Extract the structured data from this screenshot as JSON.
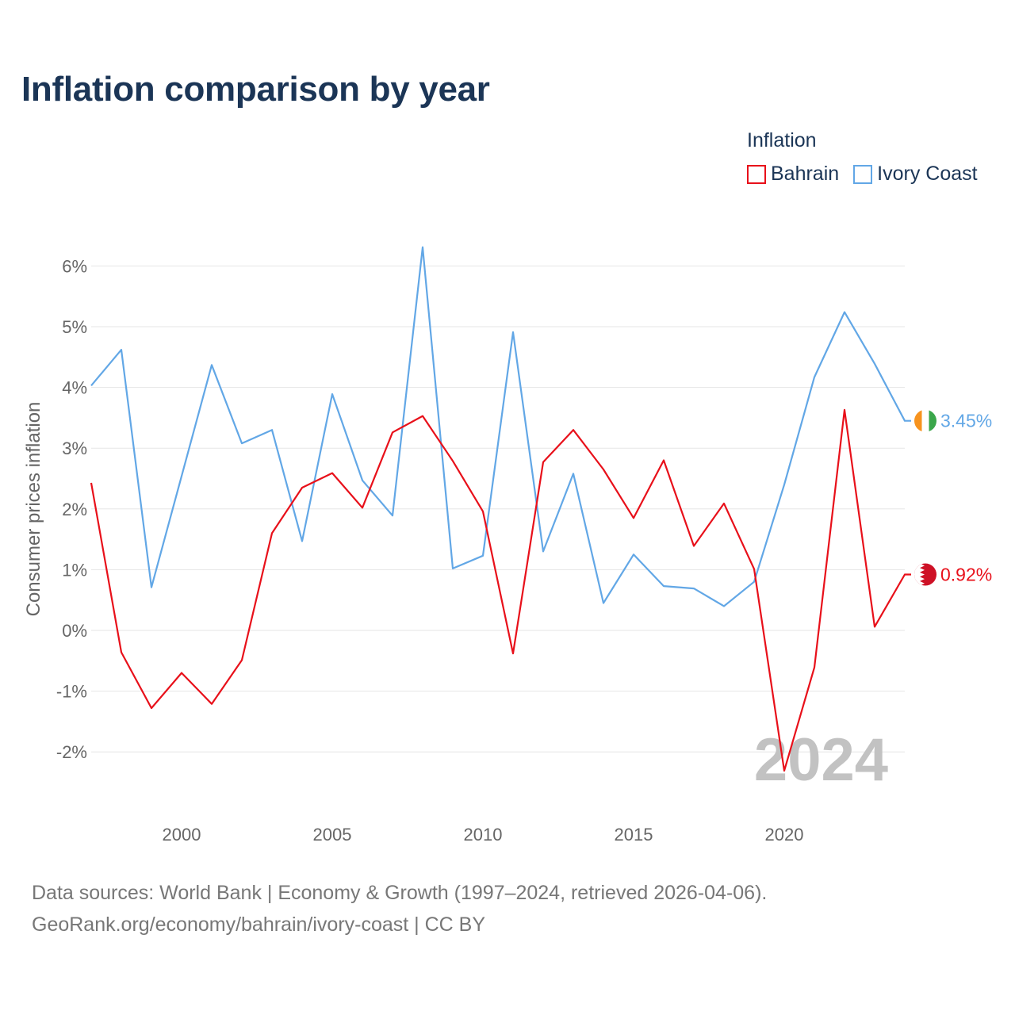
{
  "title": "Inflation comparison by year",
  "legend": {
    "title": "Inflation",
    "items": [
      {
        "label": "Bahrain",
        "color": "#e8101a"
      },
      {
        "label": "Ivory Coast",
        "color": "#62a7e6"
      }
    ]
  },
  "chart_data": {
    "type": "line",
    "title": "Inflation comparison by year",
    "xlabel": "",
    "ylabel": "Consumer prices inflation",
    "x": [
      1997,
      1998,
      1999,
      2000,
      2001,
      2002,
      2003,
      2004,
      2005,
      2006,
      2007,
      2008,
      2009,
      2010,
      2011,
      2012,
      2013,
      2014,
      2015,
      2016,
      2017,
      2018,
      2019,
      2020,
      2021,
      2022,
      2023,
      2024
    ],
    "series": [
      {
        "name": "Bahrain",
        "color": "#e8101a",
        "values": [
          2.43,
          -0.36,
          -1.28,
          -0.7,
          -1.21,
          -0.49,
          1.6,
          2.35,
          2.59,
          2.02,
          3.26,
          3.53,
          2.79,
          1.96,
          -0.38,
          2.77,
          3.3,
          2.65,
          1.85,
          2.8,
          1.39,
          2.09,
          1.01,
          -2.31,
          -0.61,
          3.63,
          0.06,
          0.92
        ]
      },
      {
        "name": "Ivory Coast",
        "color": "#62a7e6",
        "values": [
          4.03,
          4.62,
          0.71,
          2.54,
          4.37,
          3.08,
          3.3,
          1.47,
          3.89,
          2.47,
          1.89,
          6.31,
          1.02,
          1.23,
          4.91,
          1.3,
          2.58,
          0.45,
          1.25,
          0.73,
          0.69,
          0.4,
          0.8,
          2.4,
          4.17,
          5.24,
          4.39,
          3.45
        ]
      }
    ],
    "y_ticks": [
      6,
      5,
      4,
      3,
      2,
      1,
      0,
      -1,
      -2
    ],
    "y_tick_labels": [
      "6%",
      "5%",
      "4%",
      "3%",
      "2%",
      "1%",
      "0%",
      "-1%",
      "-2%"
    ],
    "x_ticks": [
      2000,
      2005,
      2010,
      2015,
      2020
    ],
    "x_tick_labels": [
      "2000",
      "2005",
      "2010",
      "2015",
      "2020"
    ],
    "xlim": [
      1997,
      2024
    ],
    "ylim": [
      -2.75,
      6.6
    ],
    "end_labels": [
      {
        "series": "Ivory Coast",
        "text": "3.45%",
        "flag": "ivory-coast-flag"
      },
      {
        "series": "Bahrain",
        "text": "0.92%",
        "flag": "bahrain-flag"
      }
    ],
    "watermark_year": "2024",
    "grid": true
  },
  "source": {
    "line1": "Data sources: World Bank | Economy & Growth (1997–2024, retrieved 2026-04-06).",
    "line2": "GeoRank.org/economy/bahrain/ivory-coast | CC BY"
  }
}
